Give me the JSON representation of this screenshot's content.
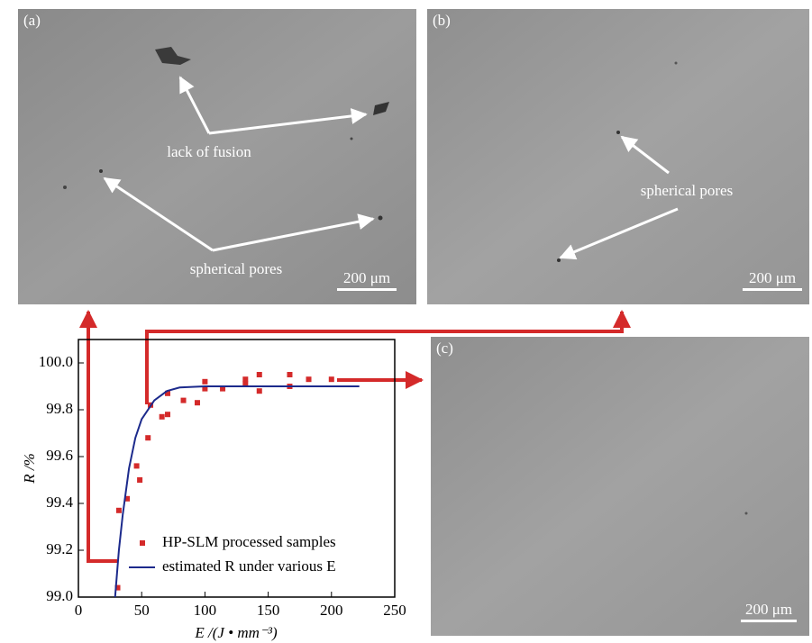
{
  "panels": [
    {
      "label": "(a)",
      "annotations": [
        "lack of fusion",
        "spherical pores"
      ],
      "scale": "200 μm"
    },
    {
      "label": "(b)",
      "annotations": [
        "spherical pores"
      ],
      "scale": "200 μm"
    },
    {
      "label": "(c)",
      "annotations": [],
      "scale": "200 μm"
    }
  ],
  "chart_data": {
    "type": "scatter",
    "xlabel": "E /(J • mm⁻³)",
    "ylabel": "R /%",
    "xlim": [
      0,
      250
    ],
    "ylim": [
      99.0,
      100.1
    ],
    "xticks": [
      0,
      50,
      100,
      150,
      200,
      250
    ],
    "yticks": [
      {
        "value": 99.0,
        "label": "99.0"
      },
      {
        "value": 99.2,
        "label": "99.2"
      },
      {
        "value": 99.4,
        "label": "99.4"
      },
      {
        "value": 99.6,
        "label": "99.6"
      },
      {
        "value": 99.8,
        "label": "99.8"
      },
      {
        "value": 100.0,
        "label": "100.0"
      }
    ],
    "legend": "bottom-right",
    "series": [
      {
        "name": "HP-SLM processed samples",
        "color": "#d42a2a",
        "style": "points",
        "x": [
          31,
          32,
          38.5,
          46,
          48.5,
          55,
          57,
          66,
          70.5,
          70.5,
          83,
          94,
          100,
          100,
          114,
          132,
          132,
          143,
          143,
          167,
          167,
          182,
          200
        ],
        "values": [
          99.04,
          99.37,
          99.42,
          99.56,
          99.5,
          99.68,
          99.82,
          99.77,
          99.78,
          99.87,
          99.84,
          99.83,
          99.92,
          99.89,
          99.89,
          99.93,
          99.91,
          99.95,
          99.88,
          99.95,
          99.9,
          99.93,
          99.93
        ]
      },
      {
        "name": "estimated R under various E",
        "color": "#1c2a8c",
        "style": "line",
        "x": [
          29,
          32,
          35,
          40,
          45,
          50,
          60,
          70,
          80,
          100,
          150,
          222
        ],
        "values": [
          99.0,
          99.2,
          99.35,
          99.55,
          99.68,
          99.76,
          99.84,
          99.88,
          99.895,
          99.9,
          99.9,
          99.9
        ]
      }
    ]
  }
}
